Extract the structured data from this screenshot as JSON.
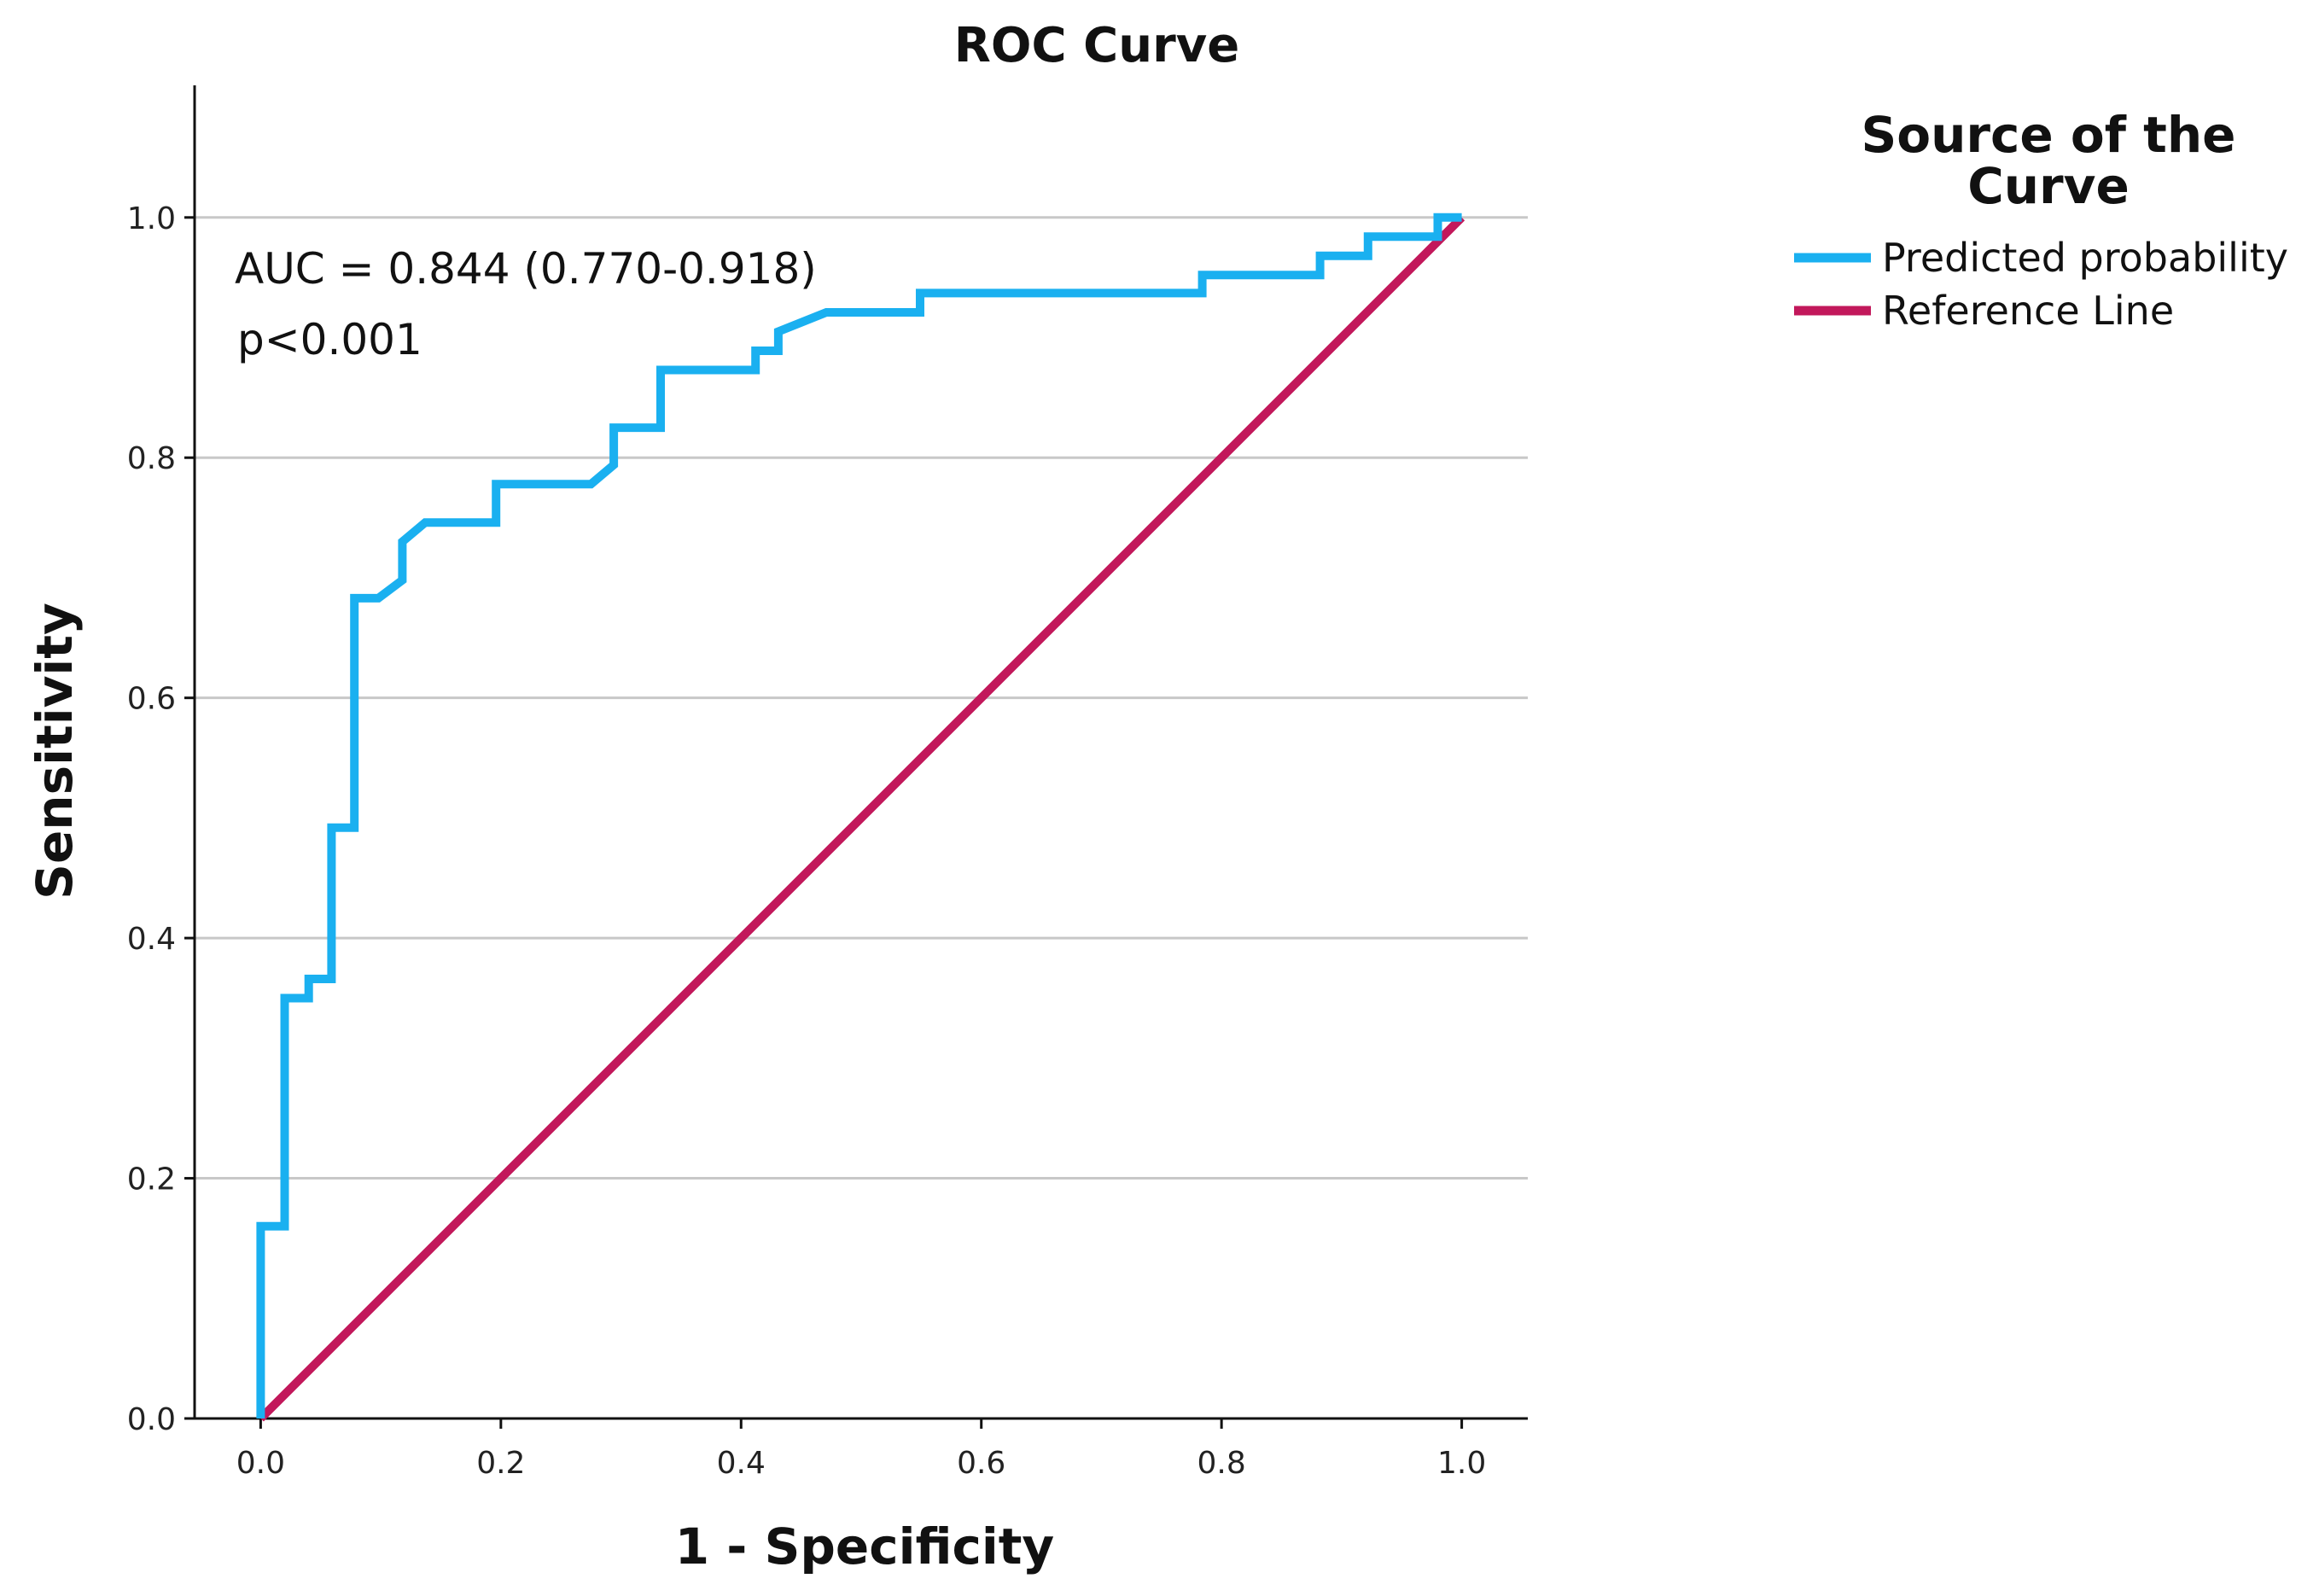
{
  "chart_data": {
    "type": "line",
    "title": "ROC Curve",
    "xlabel": "1 - Specificity",
    "ylabel": "Sensitivity",
    "xlim": [
      -0.055,
      1.055
    ],
    "ylim": [
      0.0,
      1.11
    ],
    "xticks": [
      0.0,
      0.2,
      0.4,
      0.6,
      0.8,
      1.0
    ],
    "xtick_labels": [
      "0.0",
      "0.2",
      "0.4",
      "0.6",
      "0.8",
      "1.0"
    ],
    "yticks": [
      0.0,
      0.2,
      0.4,
      0.6,
      0.8,
      1.0
    ],
    "ytick_labels": [
      "0.0",
      "0.2",
      "0.4",
      "0.6",
      "0.8",
      "1.0"
    ],
    "grid": "horizontal",
    "legend_title": "Source of the Curve",
    "legend_title_lines": [
      "Source of the",
      "Curve"
    ],
    "legend_position": "top-right outside plot",
    "annotations": [
      "AUC = 0.844 (0.770-0.918)",
      "p<0.001"
    ],
    "series": [
      {
        "name": "Predicted probability",
        "color": "#1AB0F0",
        "x": [
          0.0,
          0.0,
          0.02,
          0.02,
          0.04,
          0.04,
          0.059,
          0.059,
          0.078,
          0.078,
          0.098,
          0.118,
          0.118,
          0.137,
          0.196,
          0.196,
          0.275,
          0.294,
          0.294,
          0.333,
          0.333,
          0.412,
          0.412,
          0.431,
          0.431,
          0.471,
          0.549,
          0.549,
          0.784,
          0.784,
          0.882,
          0.882,
          0.922,
          0.922,
          0.98,
          0.98,
          1.0
        ],
        "y": [
          0.0,
          0.16,
          0.16,
          0.35,
          0.35,
          0.366,
          0.366,
          0.492,
          0.492,
          0.683,
          0.683,
          0.698,
          0.73,
          0.746,
          0.746,
          0.778,
          0.778,
          0.794,
          0.825,
          0.825,
          0.873,
          0.873,
          0.889,
          0.889,
          0.905,
          0.921,
          0.921,
          0.937,
          0.937,
          0.952,
          0.952,
          0.968,
          0.968,
          0.984,
          0.984,
          1.0,
          1.0
        ]
      },
      {
        "name": "Reference Line",
        "color": "#C2185B",
        "x": [
          0.0,
          1.0
        ],
        "y": [
          0.0,
          1.0
        ]
      }
    ]
  }
}
